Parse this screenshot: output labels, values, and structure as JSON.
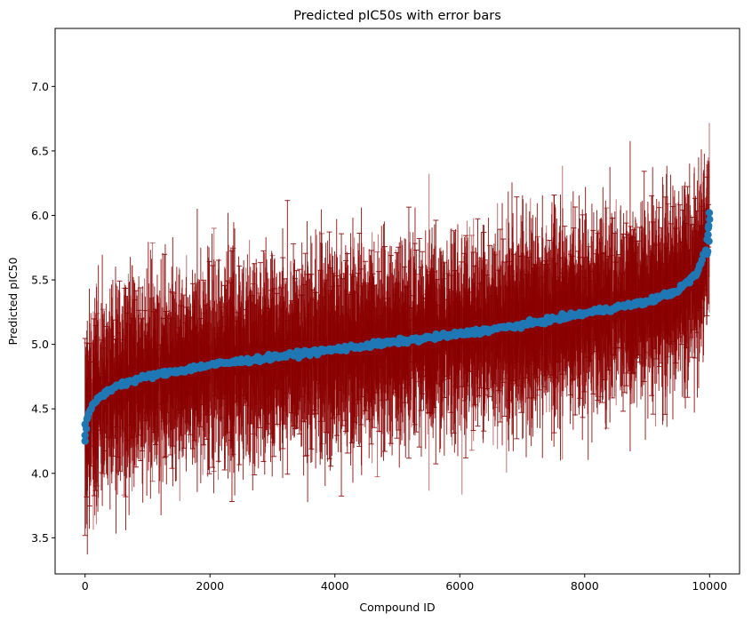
{
  "chart_data": {
    "type": "scatter",
    "title": "Predicted pIC50s with error bars",
    "xlabel": "Compound ID",
    "ylabel": "Predicted pIC50",
    "xlim": [
      -480,
      10480
    ],
    "ylim": [
      3.22,
      7.45
    ],
    "xticks": [
      0,
      2000,
      4000,
      6000,
      8000,
      10000
    ],
    "xtick_labels": [
      "0",
      "2000",
      "4000",
      "6000",
      "8000",
      "10000"
    ],
    "yticks": [
      3.5,
      4.0,
      4.5,
      5.0,
      5.5,
      6.0,
      6.5,
      7.0
    ],
    "ytick_labels": [
      "3.5",
      "4.0",
      "4.5",
      "5.0",
      "5.5",
      "6.0",
      "6.5",
      "7.0"
    ],
    "grid": false,
    "n_points": 10000,
    "marker_color": "#1f77b4",
    "errorbar_color": "#8b0000",
    "point_values": {
      "x": [
        0,
        50,
        100,
        200,
        500,
        1000,
        2000,
        3000,
        4000,
        5000,
        6000,
        7000,
        8000,
        9000,
        9500,
        9800,
        9950,
        10000
      ],
      "y": [
        4.3,
        4.45,
        4.5,
        4.58,
        4.68,
        4.75,
        4.84,
        4.9,
        4.96,
        5.02,
        5.08,
        5.15,
        5.24,
        5.33,
        5.42,
        5.55,
        5.75,
        6.0
      ]
    },
    "error_bar_halfwidth_typical": 0.45,
    "error_bar_halfwidth_max": 1.2
  }
}
